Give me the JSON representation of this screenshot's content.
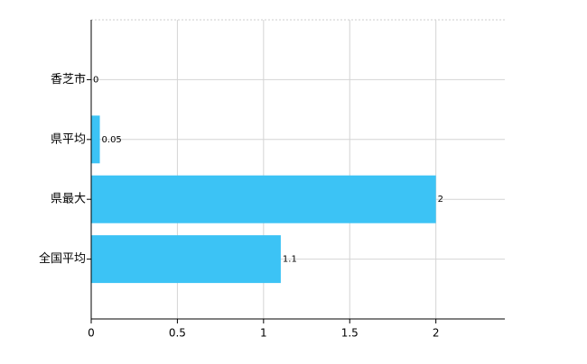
{
  "chart_data": {
    "type": "bar",
    "orientation": "horizontal",
    "categories": [
      "香芝市",
      "県平均",
      "県最大",
      "全国平均"
    ],
    "values": [
      0,
      0.05,
      2,
      1.1
    ],
    "color": "#3cc3f5",
    "xlim": [
      0,
      2.4
    ],
    "xticks": [
      0,
      0.5,
      1,
      1.5,
      2
    ],
    "grid": true
  }
}
